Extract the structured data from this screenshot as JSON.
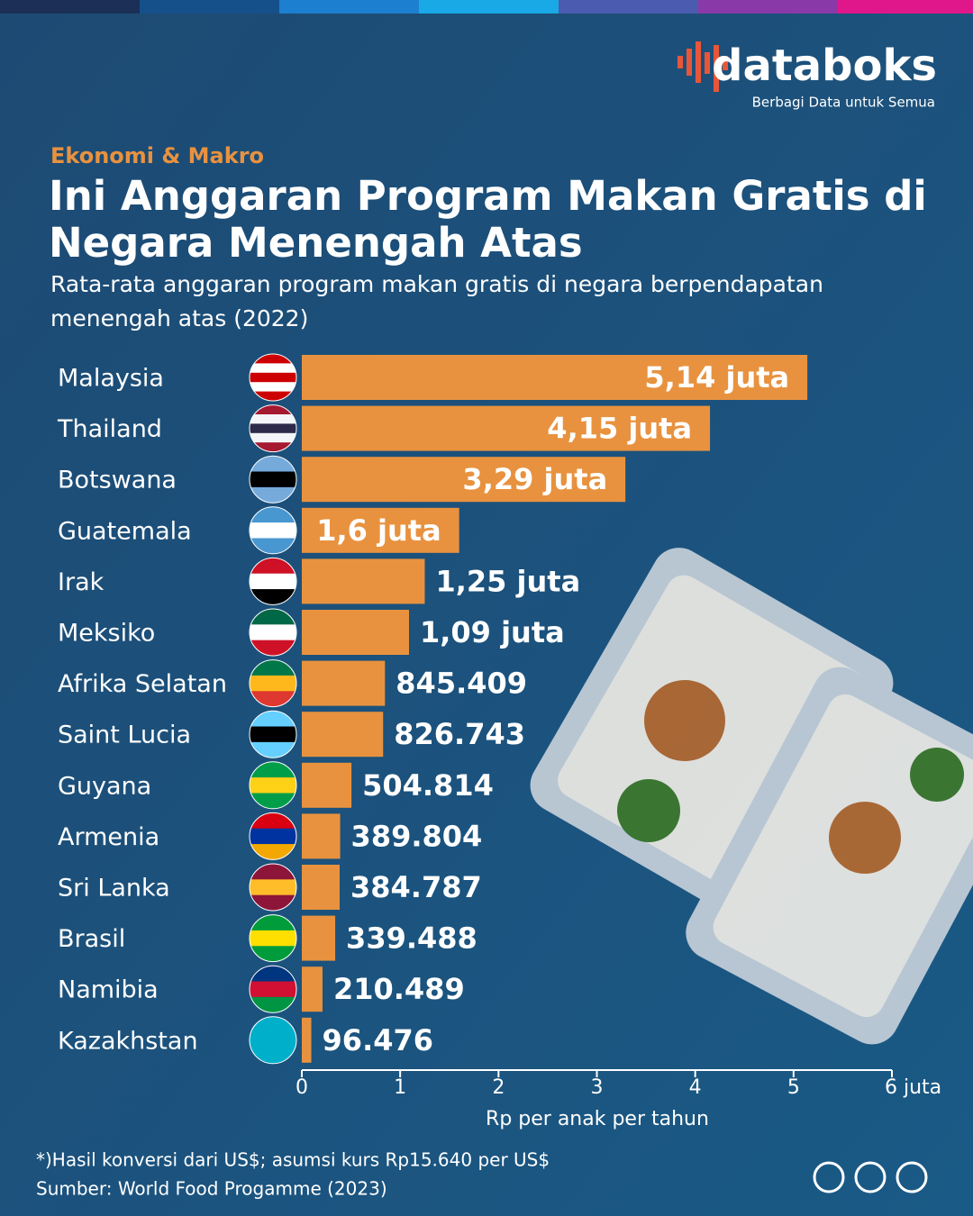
{
  "brand": {
    "name": "databoks",
    "tagline": "Berbagi Data untuk Semua"
  },
  "chart_data": {
    "type": "hbar",
    "kicker": "Ekonomi & Makro",
    "title": "Ini Anggaran Program Makan Gratis di Negara Menengah Atas",
    "subtitle": "Rata-rata anggaran program makan gratis di negara berpendapatan menengah atas (2022)",
    "categories": [
      "Malaysia",
      "Thailand",
      "Botswana",
      "Guatemala",
      "Irak",
      "Meksiko",
      "Afrika Selatan",
      "Saint Lucia",
      "Guyana",
      "Armenia",
      "Sri Lanka",
      "Brasil",
      "Namibia",
      "Kazakhstan"
    ],
    "values": [
      5.14,
      4.15,
      3.29,
      1.6,
      1.25,
      1.09,
      0.845409,
      0.826743,
      0.504814,
      0.389804,
      0.384787,
      0.339488,
      0.210489,
      0.096476
    ],
    "value_labels": [
      "5,14 juta",
      "4,15 juta",
      "3,29 juta",
      "1,6 juta",
      "1,25 juta",
      "1,09 juta",
      "845.409",
      "826.743",
      "504.814",
      "389.804",
      "384.787",
      "339.488",
      "210.489",
      "96.476"
    ],
    "color": "#e8923f",
    "xlim": [
      0,
      6
    ],
    "xticks": [
      0,
      1,
      2,
      3,
      4,
      5,
      {
        "value": 6,
        "label": "6 juta"
      }
    ],
    "x_label": "Rp per anak per tahun",
    "footnote": "*)Hasil konversi dari US$; asumsi kurs Rp15.640 per US$",
    "source": "Sumber: World Food Progamme (2023)"
  }
}
